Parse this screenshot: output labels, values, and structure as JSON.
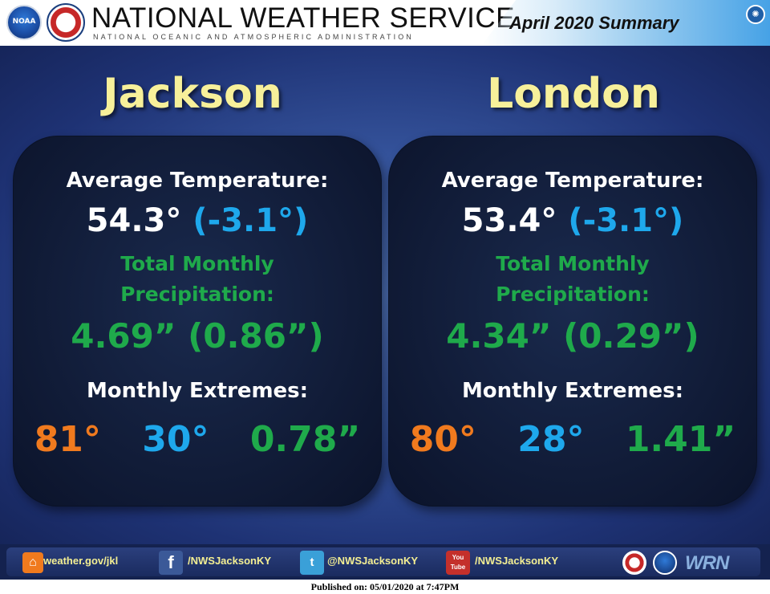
{
  "header": {
    "brand_title": "NATIONAL WEATHER SERVICE",
    "brand_subtitle": "NATIONAL OCEANIC AND ATMOSPHERIC ADMINISTRATION",
    "summary_label": "April 2020 Summary",
    "noaa_logo_text": "NOAA",
    "noaa_logo_icon": "noaa-logo",
    "nws_logo_icon": "nws-logo",
    "doc_logo_icon": "commerce-seal"
  },
  "sites": [
    {
      "city": "Jackson",
      "avg_temp_label": "Average Temperature:",
      "avg_temp": "54.3°",
      "avg_temp_departure": "(-3.1°)",
      "precip_label_line1": "Total Monthly",
      "precip_label_line2": "Precipitation:",
      "precip_total": "4.69”",
      "precip_departure": "(0.86”)",
      "extremes_label": "Monthly Extremes:",
      "extreme_high": "81°",
      "extreme_low": "30°",
      "extreme_precip": "0.78”"
    },
    {
      "city": "London",
      "avg_temp_label": "Average Temperature:",
      "avg_temp": "53.4°",
      "avg_temp_departure": "(-3.1°)",
      "precip_label_line1": "Total Monthly",
      "precip_label_line2": "Precipitation:",
      "precip_total": "4.34”",
      "precip_departure": "(0.29”)",
      "extremes_label": "Monthly Extremes:",
      "extreme_high": "80°",
      "extreme_low": "28°",
      "extreme_precip": "1.41”"
    }
  ],
  "colors": {
    "city_title": "#f7f09a",
    "temperature_departure": "#1ea8ec",
    "precipitation": "#1faa4b",
    "extreme_high": "#f07a1e",
    "extreme_low": "#1ea8ec"
  },
  "footer": {
    "links": [
      {
        "icon": "home-icon",
        "label": "weather.gov/jkl"
      },
      {
        "icon": "facebook-icon",
        "glyph": "f",
        "label": "/NWSJacksonKY"
      },
      {
        "icon": "twitter-icon",
        "glyph": "t",
        "label": "@NWSJacksonKY"
      },
      {
        "icon": "youtube-icon",
        "glyph_line1": "You",
        "glyph_line2": "Tube",
        "label": "/NWSJacksonKY"
      }
    ],
    "wrn_logo_text": "WRN",
    "published": "Published on: 05/01/2020 at 7:47PM"
  }
}
